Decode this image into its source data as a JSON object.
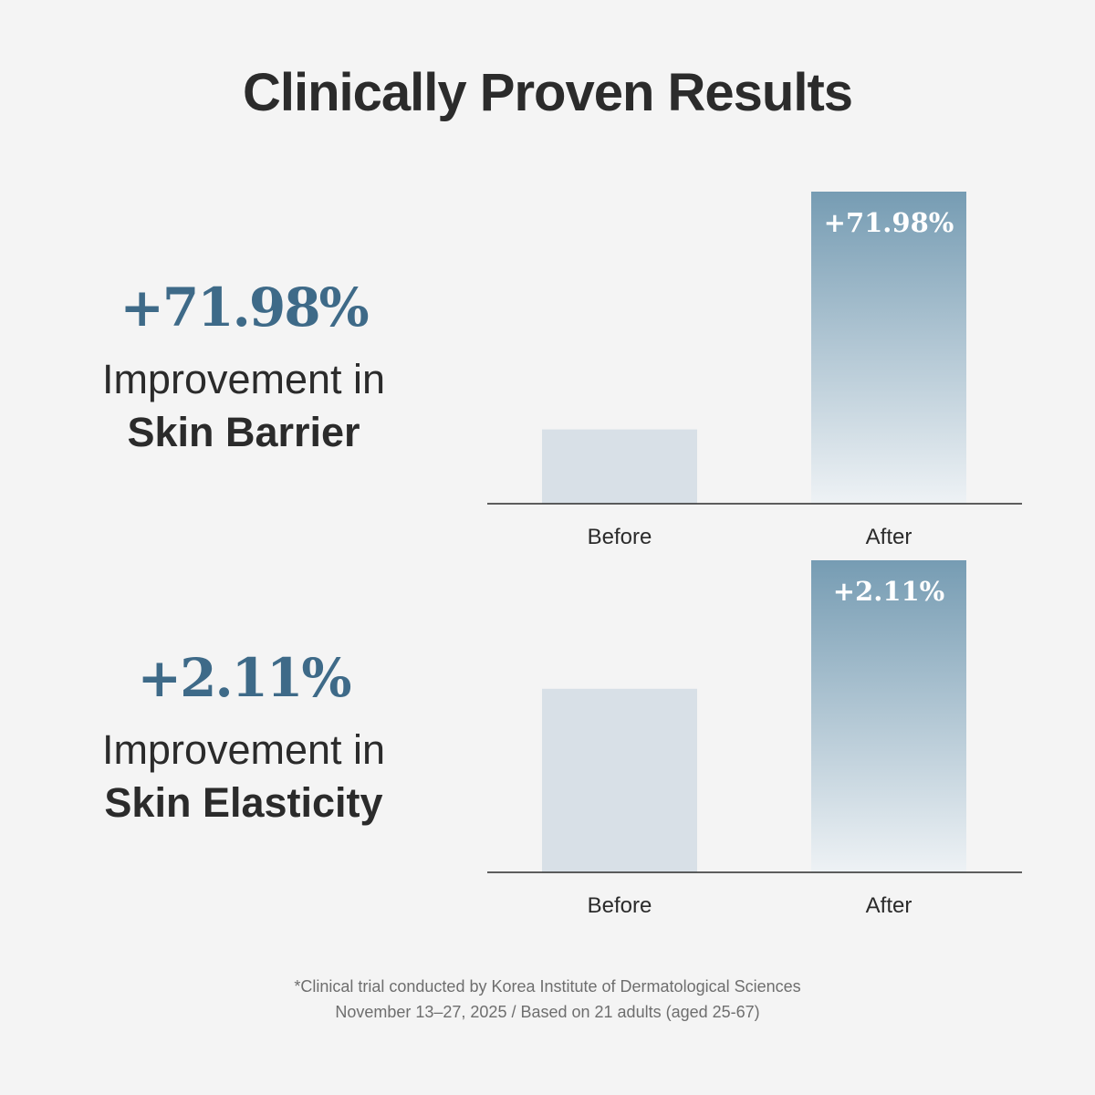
{
  "title": "Clinically Proven Results",
  "theme": {
    "accent": "#3e6a88",
    "bar_before": "#d8e0e7",
    "bar_after_top": "#769cb3",
    "bar_after_bottom": "#eef2f5",
    "axis": "#2b2b2b"
  },
  "sections": [
    {
      "stat": "+71.98%",
      "line1": "Improvement in",
      "line2": "Skin Barrier"
    },
    {
      "stat": "+2.11%",
      "line1": "Improvement in",
      "line2": "Skin Elasticity"
    }
  ],
  "chart_data": [
    {
      "type": "bar",
      "title": "Skin Barrier",
      "categories": [
        "Before",
        "After"
      ],
      "values": [
        1.0,
        4.2
      ],
      "data_labels": [
        "",
        "+71.98%"
      ],
      "ylim": [
        0,
        4.2
      ]
    },
    {
      "type": "bar",
      "title": "Skin Elasticity",
      "categories": [
        "Before",
        "After"
      ],
      "values": [
        1.0,
        1.7
      ],
      "data_labels": [
        "",
        "+2.11%"
      ],
      "ylim": [
        0,
        1.7
      ]
    }
  ],
  "footnote": {
    "line1": "*Clinical trial conducted by Korea Institute of Dermatological Sciences",
    "line2": "November 13–27, 2025 / Based on 21 adults (aged 25-67)"
  }
}
